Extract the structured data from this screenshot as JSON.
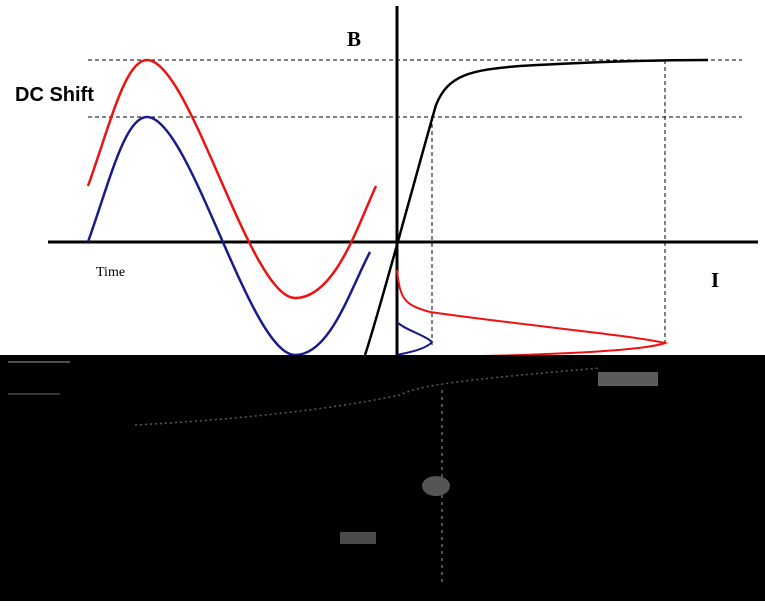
{
  "labels": {
    "dc_shift": "DC Shift",
    "b_axis": "B",
    "i_axis": "I",
    "time_axis": "Time"
  },
  "colors": {
    "background": "#ffffff",
    "axes": "#000000",
    "shifted_wave": "#ee1111",
    "original_wave": "#1a1a8c",
    "magnetization_curve": "#000000",
    "corrupted_region": "#000000"
  }
}
